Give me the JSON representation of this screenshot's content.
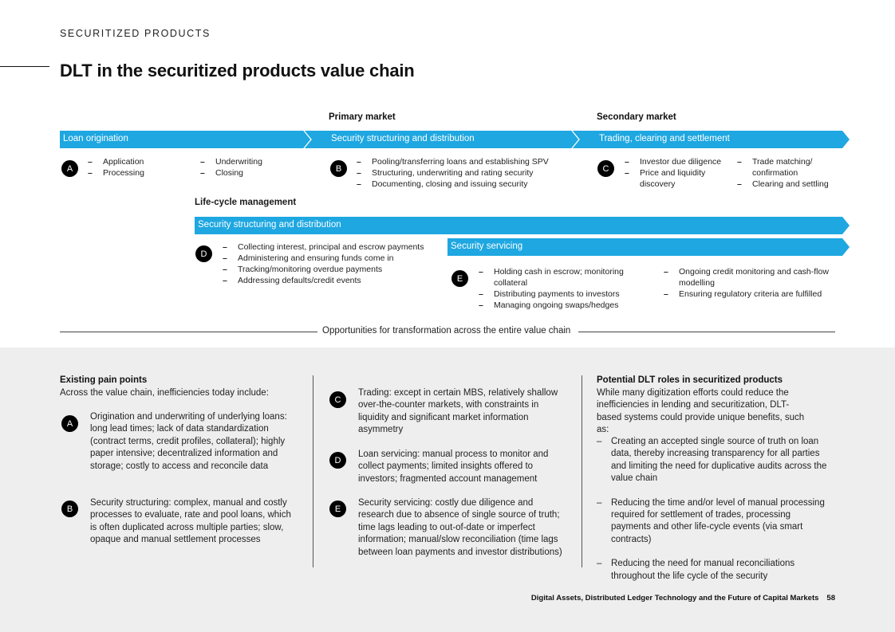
{
  "header": {
    "section_label": "SECURITIZED PRODUCTS",
    "title": "DLT in the securitized products value chain"
  },
  "colors": {
    "accent_blue": "#1ea7e1",
    "panel_grey": "#eeeeee",
    "badge_black": "#000000"
  },
  "value_chain": {
    "primary_market_heading": "Primary market",
    "secondary_market_heading": "Secondary market",
    "bar_labels": [
      "Loan origination",
      "Security structuring and distribution",
      "Trading, clearing and settlement"
    ],
    "stage_a": {
      "badge": "A",
      "list1": [
        "Application",
        "Processing"
      ],
      "list2": [
        "Underwriting",
        "Closing"
      ]
    },
    "stage_b": {
      "badge": "B",
      "list": [
        "Pooling/transferring loans and establishing SPV",
        "Structuring, underwriting and rating security",
        "Documenting, closing and issuing security"
      ]
    },
    "stage_c": {
      "badge": "C",
      "list1": [
        "Investor due diligence",
        "Price and liquidity discovery"
      ],
      "list2": [
        "Trade matching/ confirmation",
        "Clearing and settling"
      ]
    }
  },
  "lifecycle": {
    "heading": "Life-cycle management",
    "bar1_label": "Security structuring and distribution",
    "bar2_label": "Security servicing",
    "stage_d": {
      "badge": "D",
      "list": [
        "Collecting interest, principal and escrow payments",
        "Administering and ensuring funds come in",
        "Tracking/monitoring overdue payments",
        "Addressing defaults/credit events"
      ]
    },
    "stage_e": {
      "badge": "E",
      "list1": [
        "Holding cash in escrow; monitoring collateral",
        "Distributing payments to investors",
        "Managing ongoing swaps/hedges"
      ],
      "list2": [
        "Ongoing credit monitoring and cash-flow modelling",
        "Ensuring regulatory criteria are fulfilled"
      ]
    }
  },
  "opportunities_label": "Opportunities for transformation across the entire value chain",
  "pain_points": {
    "heading": "Existing pain points",
    "subheading": "Across the value chain, inefficiencies today include:",
    "items": [
      {
        "badge": "A",
        "text": "Origination and underwriting of underlying loans: long lead times; lack of data standardization (contract terms, credit profiles, collateral); highly paper intensive; decentralized information and storage; costly to access and reconcile data"
      },
      {
        "badge": "B",
        "text": "Security structuring: complex, manual and costly processes to evaluate, rate and pool loans, which is often duplicated across multiple parties; slow, opaque and manual settlement processes"
      },
      {
        "badge": "C",
        "text": "Trading: except in certain MBS, relatively shallow over-the-counter markets, with constraints in liquidity and significant market information asymmetry"
      },
      {
        "badge": "D",
        "text": "Loan servicing: manual process to monitor and collect payments; limited insights offered to investors; fragmented account management"
      },
      {
        "badge": "E",
        "text": "Security servicing: costly due diligence and research due to absence of single source of truth; time lags leading to out-of-date or imperfect information; manual/slow reconciliation (time lags between loan payments and investor distributions)"
      }
    ]
  },
  "dlt_roles": {
    "heading": "Potential DLT roles in securitized products",
    "subheading": "While many digitization efforts could reduce the inefficiencies in lending and securitization, DLT-based systems could provide unique benefits, such as:",
    "items": [
      "Creating an accepted single source of truth on loan data, thereby increasing transparency for all parties and limiting the need for duplicative audits across the value chain",
      "Reducing the time and/or level of manual processing required for settlement of trades, processing payments and other life-cycle events (via smart contracts)",
      "Reducing the need for manual reconciliations throughout the life cycle of the security"
    ]
  },
  "footer": {
    "publication": "Digital Assets, Distributed Ledger Technology and the Future of Capital Markets",
    "page_number": "58"
  }
}
